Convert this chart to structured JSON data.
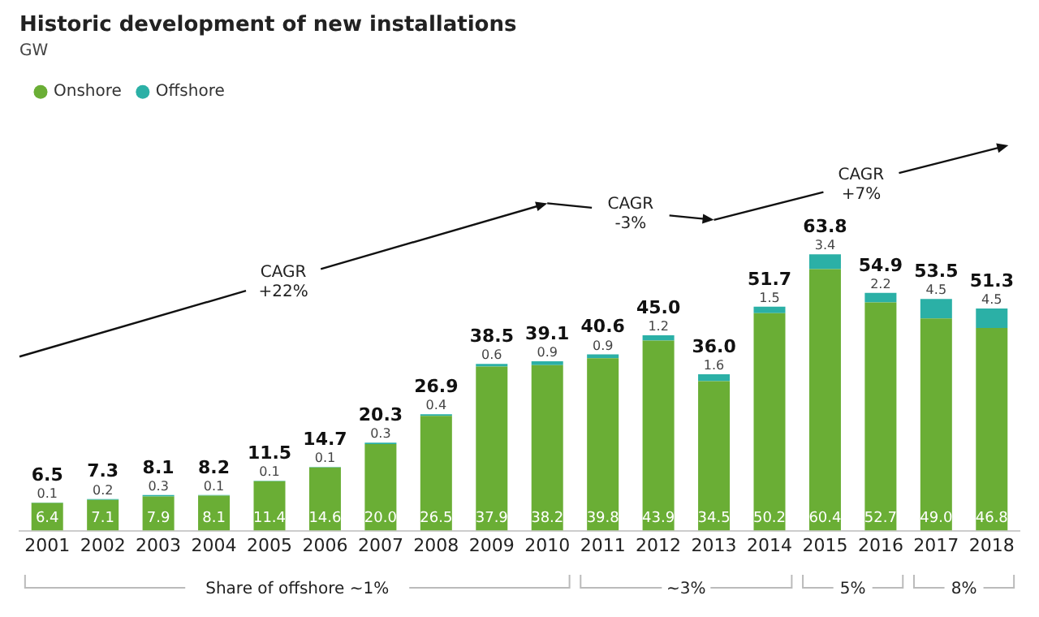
{
  "chart_data": {
    "type": "bar",
    "title": "Historic development of new installations",
    "subtitle": "GW",
    "categories": [
      "2001",
      "2002",
      "2003",
      "2004",
      "2005",
      "2006",
      "2007",
      "2008",
      "2009",
      "2010",
      "2011",
      "2012",
      "2013",
      "2014",
      "2015",
      "2016",
      "2017",
      "2018"
    ],
    "stacked": true,
    "series": [
      {
        "name": "Onshore",
        "color": "#6aae35",
        "values": [
          6.4,
          7.1,
          7.9,
          8.1,
          11.4,
          14.6,
          20.0,
          26.5,
          37.9,
          38.2,
          39.8,
          43.9,
          34.5,
          50.2,
          60.4,
          52.7,
          49.0,
          46.8
        ],
        "value_labels": [
          "6.4",
          "7.1",
          "7.9",
          "8.1",
          "11.4",
          "14.6",
          "20.0",
          "26.5",
          "37.9",
          "38.2",
          "39.8",
          "43.9",
          "34.5",
          "50.2",
          "60.4",
          "52.7",
          "49.0",
          "46.8"
        ]
      },
      {
        "name": "Offshore",
        "color": "#2bb0a6",
        "values": [
          0.1,
          0.2,
          0.3,
          0.1,
          0.1,
          0.1,
          0.3,
          0.4,
          0.6,
          0.9,
          0.9,
          1.2,
          1.6,
          1.5,
          3.4,
          2.2,
          4.5,
          4.5
        ],
        "value_labels": [
          "0.1",
          "0.2",
          "0.3",
          "0.1",
          "0.1",
          "0.1",
          "0.3",
          "0.4",
          "0.6",
          "0.9",
          "0.9",
          "1.2",
          "1.6",
          "1.5",
          "3.4",
          "2.2",
          "4.5",
          "4.5"
        ]
      }
    ],
    "totals": [
      "6.5",
      "7.3",
      "8.1",
      "8.2",
      "11.5",
      "14.7",
      "20.3",
      "26.9",
      "38.5",
      "39.1",
      "40.6",
      "45.0",
      "36.0",
      "51.7",
      "63.8",
      "54.9",
      "53.5",
      "51.3"
    ],
    "legend": "top left",
    "grid": false,
    "annotations": [
      "CAGR\n+22%",
      "CAGR\n-3%",
      "CAGR\n+7%",
      "Share of offshore ~1%",
      "~3%",
      "5%",
      "8%"
    ]
  }
}
